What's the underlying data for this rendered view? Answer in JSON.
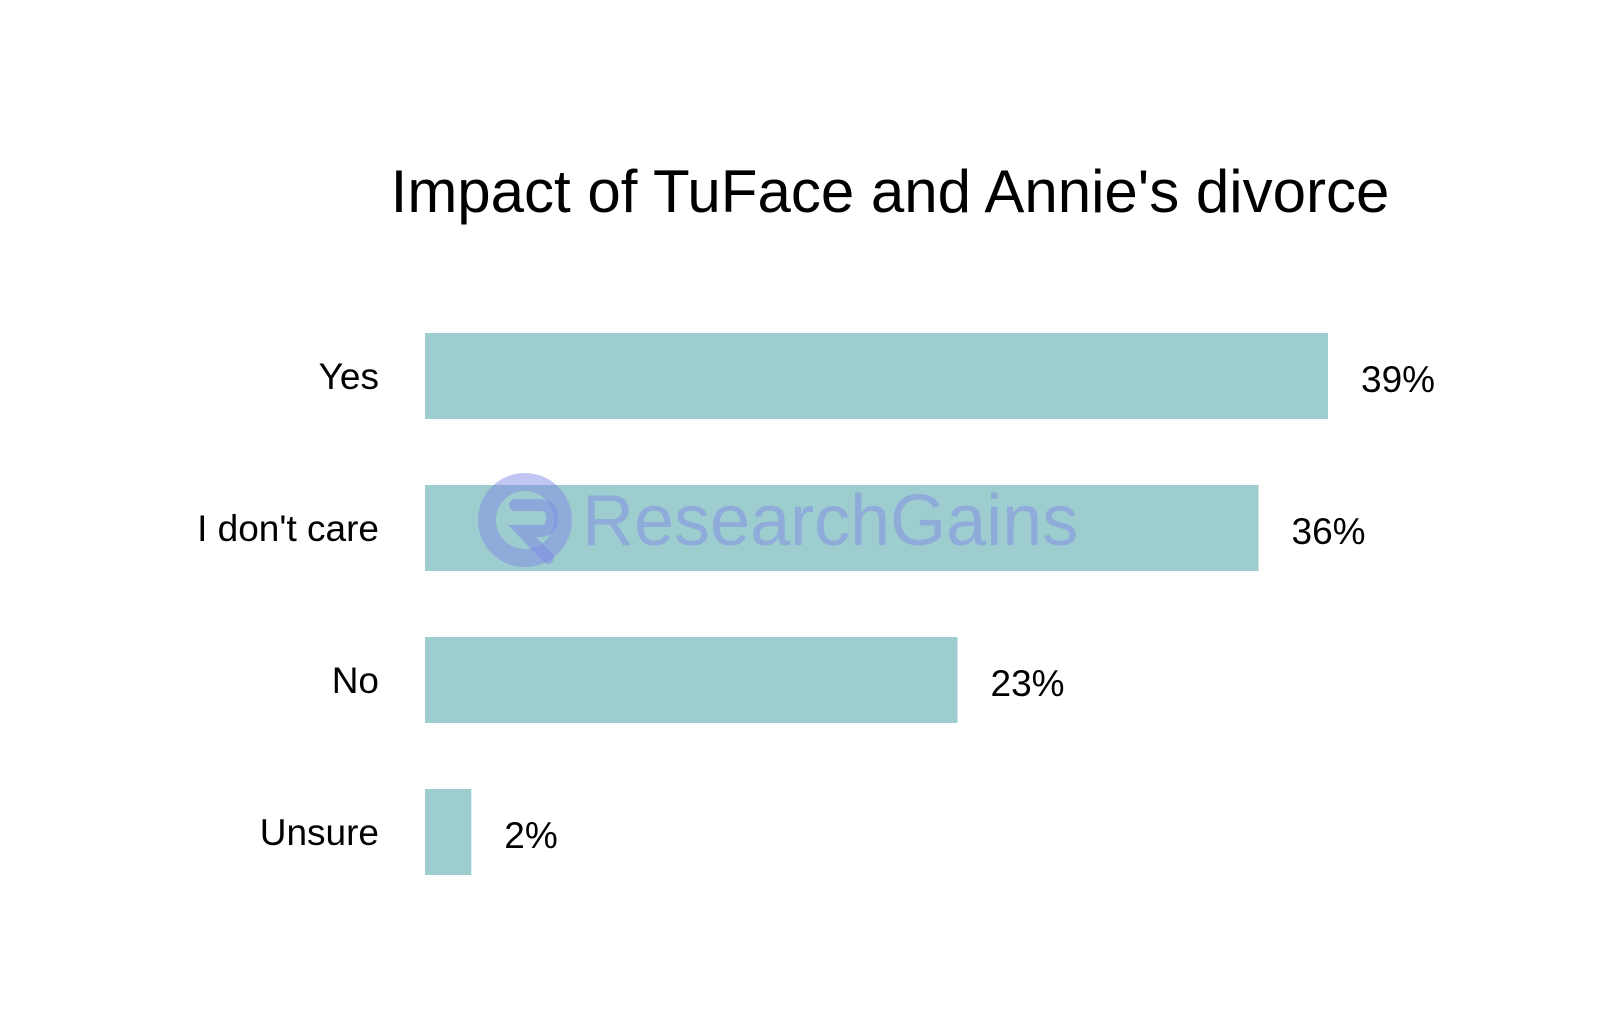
{
  "chart_data": {
    "type": "bar",
    "orientation": "horizontal",
    "title": "Impact of TuFace and Annie's divorce",
    "categories": [
      "Yes",
      "I don't care",
      "No",
      "Unsure"
    ],
    "values": [
      39,
      36,
      23,
      2
    ],
    "value_labels": [
      "39%",
      "36%",
      "23%",
      "2%"
    ],
    "unit": "%",
    "xlim": [
      0,
      39
    ],
    "grid": false,
    "legend": "none",
    "bar_color": "#9dcdce"
  },
  "watermark": {
    "text": "ResearchGains",
    "color": "#7f88e6"
  }
}
